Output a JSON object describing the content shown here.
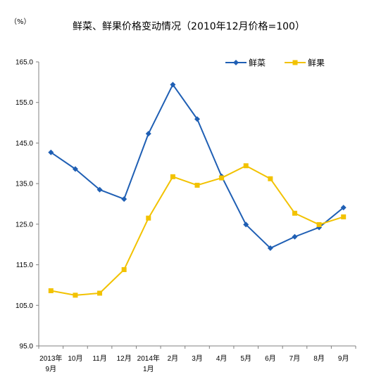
{
  "chart_data": {
    "type": "line",
    "title": "鲜菜、鲜果价格变动情况（2010年12月价格=100）",
    "y_unit": "（%）",
    "ylim": [
      95.0,
      165.0
    ],
    "yticks": [
      "95.0",
      "105.0",
      "115.0",
      "125.0",
      "135.0",
      "145.0",
      "155.0",
      "165.0"
    ],
    "categories": [
      [
        "2013年",
        "9月"
      ],
      [
        "10月"
      ],
      [
        "11月"
      ],
      [
        "12月"
      ],
      [
        "2014年",
        "1月"
      ],
      [
        "2月"
      ],
      [
        "3月"
      ],
      [
        "4月"
      ],
      [
        "5月"
      ],
      [
        "6月"
      ],
      [
        "7月"
      ],
      [
        "8月"
      ],
      [
        "9月"
      ]
    ],
    "series": [
      {
        "name": "鲜菜",
        "color": "#1f5fb4",
        "marker": "diamond",
        "values": [
          142.7,
          138.6,
          133.5,
          131.2,
          147.3,
          159.4,
          150.9,
          136.8,
          124.9,
          119.1,
          121.9,
          124.2,
          129.1
        ]
      },
      {
        "name": "鲜果",
        "color": "#f2c200",
        "marker": "square",
        "values": [
          108.6,
          107.5,
          108.0,
          113.8,
          126.5,
          136.7,
          134.6,
          136.4,
          139.4,
          136.2,
          127.7,
          124.9,
          126.8
        ]
      }
    ],
    "legend_position": "top-right",
    "grid": false
  }
}
